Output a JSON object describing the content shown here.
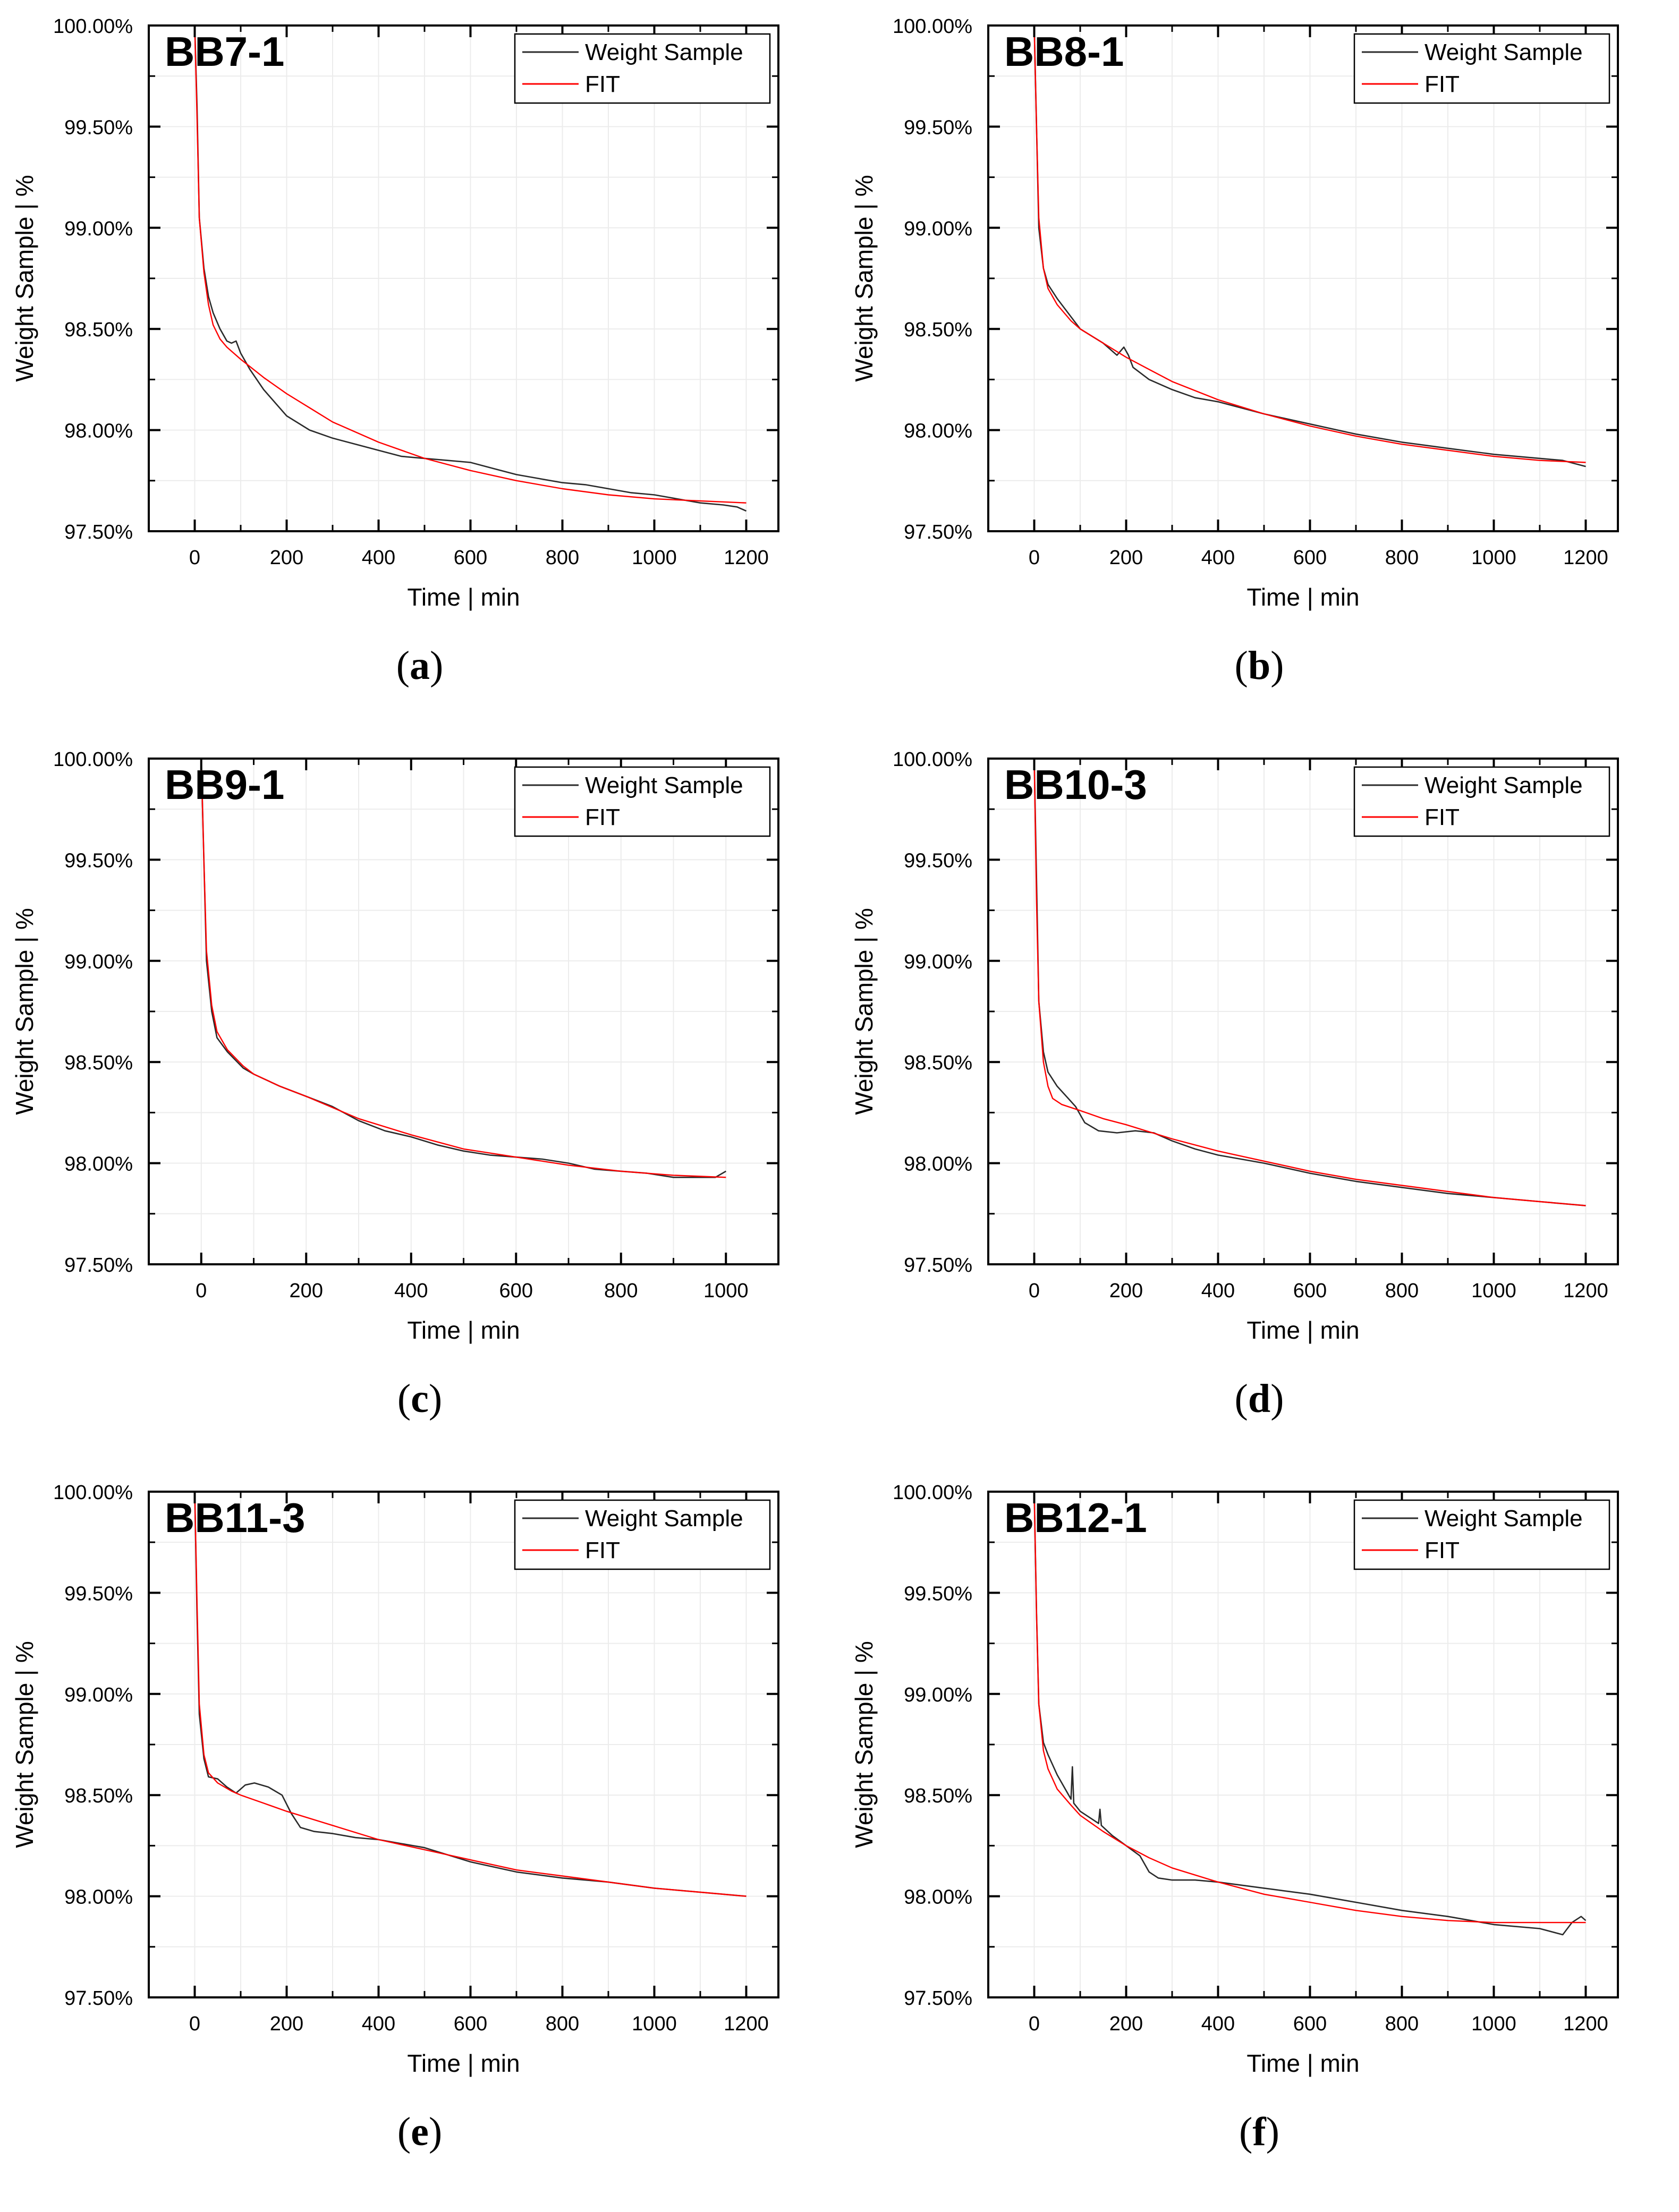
{
  "chart_data": [
    {
      "type": "line",
      "title": "BB7-1",
      "panel_label": "a",
      "xlabel": "Time | min",
      "ylabel": "Weight Sample | %",
      "xlim": [
        -100,
        1270
      ],
      "ylim": [
        97.5,
        100.0
      ],
      "xticks": [
        0,
        200,
        400,
        600,
        800,
        1000,
        1200
      ],
      "yticks": [
        97.5,
        98.0,
        98.5,
        99.0,
        99.5,
        100.0
      ],
      "ytick_labels": [
        "97.50%",
        "98.00%",
        "98.50%",
        "99.00%",
        "99.50%",
        "100.00%"
      ],
      "legend": [
        "Weight Sample",
        "FIT"
      ],
      "legend_position": "top-right",
      "series": [
        {
          "name": "Weight Sample",
          "color": "#2a2a2a",
          "x": [
            0,
            5,
            10,
            20,
            30,
            40,
            55,
            70,
            80,
            90,
            100,
            120,
            150,
            200,
            250,
            300,
            350,
            400,
            450,
            500,
            550,
            600,
            650,
            700,
            750,
            800,
            850,
            900,
            950,
            1000,
            1050,
            1100,
            1150,
            1180,
            1200
          ],
          "y": [
            100.0,
            99.6,
            99.05,
            98.8,
            98.66,
            98.58,
            98.5,
            98.44,
            98.43,
            98.44,
            98.38,
            98.3,
            98.2,
            98.07,
            98.0,
            97.96,
            97.93,
            97.9,
            97.87,
            97.86,
            97.85,
            97.84,
            97.81,
            97.78,
            97.76,
            97.74,
            97.73,
            97.71,
            97.69,
            97.68,
            97.66,
            97.64,
            97.63,
            97.62,
            97.6
          ]
        },
        {
          "name": "FIT",
          "color": "#ff0000",
          "x": [
            0,
            5,
            10,
            20,
            30,
            40,
            55,
            70,
            100,
            150,
            200,
            250,
            300,
            400,
            500,
            600,
            700,
            800,
            900,
            1000,
            1100,
            1200
          ],
          "y": [
            100.0,
            99.55,
            99.05,
            98.78,
            98.62,
            98.52,
            98.45,
            98.41,
            98.35,
            98.26,
            98.18,
            98.11,
            98.04,
            97.94,
            97.86,
            97.8,
            97.75,
            97.71,
            97.68,
            97.66,
            97.65,
            97.64
          ]
        }
      ]
    },
    {
      "type": "line",
      "title": "BB8-1",
      "panel_label": "b",
      "xlabel": "Time | min",
      "ylabel": "Weight Sample | %",
      "xlim": [
        -100,
        1270
      ],
      "ylim": [
        97.5,
        100.0
      ],
      "xticks": [
        0,
        200,
        400,
        600,
        800,
        1000,
        1200
      ],
      "yticks": [
        97.5,
        98.0,
        98.5,
        99.0,
        99.5,
        100.0
      ],
      "ytick_labels": [
        "97.50%",
        "98.00%",
        "98.50%",
        "99.00%",
        "99.50%",
        "100.00%"
      ],
      "legend": [
        "Weight Sample",
        "FIT"
      ],
      "legend_position": "top-right",
      "series": [
        {
          "name": "Weight Sample",
          "color": "#2a2a2a",
          "x": [
            0,
            5,
            10,
            20,
            30,
            50,
            80,
            100,
            150,
            180,
            195,
            205,
            215,
            250,
            300,
            350,
            400,
            500,
            600,
            700,
            800,
            900,
            1000,
            1100,
            1150,
            1200
          ],
          "y": [
            100.0,
            99.5,
            99.0,
            98.8,
            98.72,
            98.65,
            98.56,
            98.5,
            98.43,
            98.37,
            98.41,
            98.37,
            98.31,
            98.25,
            98.2,
            98.16,
            98.14,
            98.08,
            98.03,
            97.98,
            97.94,
            97.91,
            97.88,
            97.86,
            97.85,
            97.82
          ]
        },
        {
          "name": "FIT",
          "color": "#ff0000",
          "x": [
            0,
            5,
            10,
            20,
            30,
            50,
            80,
            100,
            150,
            200,
            250,
            300,
            400,
            500,
            600,
            700,
            800,
            900,
            1000,
            1100,
            1200
          ],
          "y": [
            100.0,
            99.5,
            99.05,
            98.8,
            98.7,
            98.62,
            98.54,
            98.5,
            98.43,
            98.36,
            98.3,
            98.24,
            98.15,
            98.08,
            98.02,
            97.97,
            97.93,
            97.9,
            97.87,
            97.85,
            97.84
          ]
        }
      ]
    },
    {
      "type": "line",
      "title": "BB9-1",
      "panel_label": "c",
      "xlabel": "Time | min",
      "ylabel": "Weight Sample | %",
      "xlim": [
        -100,
        1100
      ],
      "ylim": [
        97.5,
        100.0
      ],
      "xticks": [
        0,
        200,
        400,
        600,
        800,
        1000
      ],
      "yticks": [
        97.5,
        98.0,
        98.5,
        99.0,
        99.5,
        100.0
      ],
      "ytick_labels": [
        "97.50%",
        "98.00%",
        "98.50%",
        "99.00%",
        "99.50%",
        "100.00%"
      ],
      "legend": [
        "Weight Sample",
        "FIT"
      ],
      "legend_position": "top-right",
      "series": [
        {
          "name": "Weight Sample",
          "color": "#2a2a2a",
          "x": [
            0,
            5,
            10,
            20,
            30,
            50,
            80,
            100,
            150,
            200,
            250,
            300,
            350,
            400,
            450,
            500,
            550,
            600,
            650,
            700,
            750,
            800,
            850,
            900,
            950,
            980,
            1000
          ],
          "y": [
            100.0,
            99.5,
            99.0,
            98.75,
            98.62,
            98.55,
            98.47,
            98.44,
            98.38,
            98.33,
            98.28,
            98.21,
            98.16,
            98.13,
            98.09,
            98.06,
            98.04,
            98.03,
            98.02,
            98.0,
            97.97,
            97.96,
            97.95,
            97.93,
            97.93,
            97.93,
            97.96
          ]
        },
        {
          "name": "FIT",
          "color": "#ff0000",
          "x": [
            0,
            5,
            10,
            20,
            30,
            50,
            80,
            100,
            150,
            200,
            300,
            400,
            500,
            600,
            700,
            800,
            900,
            1000
          ],
          "y": [
            100.0,
            99.5,
            99.05,
            98.78,
            98.65,
            98.56,
            98.48,
            98.44,
            98.38,
            98.33,
            98.22,
            98.14,
            98.07,
            98.03,
            97.99,
            97.96,
            97.94,
            97.93
          ]
        }
      ]
    },
    {
      "type": "line",
      "title": "BB10-3",
      "panel_label": "d",
      "xlabel": "Time | min",
      "ylabel": "Weight Sample | %",
      "xlim": [
        -100,
        1270
      ],
      "ylim": [
        97.5,
        100.0
      ],
      "xticks": [
        0,
        200,
        400,
        600,
        800,
        1000,
        1200
      ],
      "yticks": [
        97.5,
        98.0,
        98.5,
        99.0,
        99.5,
        100.0
      ],
      "ytick_labels": [
        "97.50%",
        "98.00%",
        "98.50%",
        "99.00%",
        "99.50%",
        "100.00%"
      ],
      "legend": [
        "Weight Sample",
        "FIT"
      ],
      "legend_position": "top-right",
      "series": [
        {
          "name": "Weight Sample",
          "color": "#2a2a2a",
          "x": [
            0,
            5,
            10,
            20,
            30,
            50,
            70,
            90,
            110,
            140,
            180,
            220,
            260,
            300,
            350,
            400,
            500,
            600,
            700,
            800,
            900,
            1000,
            1100,
            1200
          ],
          "y": [
            100.0,
            99.4,
            98.8,
            98.55,
            98.45,
            98.38,
            98.33,
            98.28,
            98.2,
            98.16,
            98.15,
            98.16,
            98.15,
            98.11,
            98.07,
            98.04,
            98.0,
            97.95,
            97.91,
            97.88,
            97.85,
            97.83,
            97.81,
            97.79
          ]
        },
        {
          "name": "FIT",
          "color": "#ff0000",
          "x": [
            0,
            5,
            10,
            20,
            30,
            40,
            60,
            100,
            150,
            200,
            300,
            400,
            500,
            600,
            700,
            800,
            900,
            1000,
            1100,
            1200
          ],
          "y": [
            100.0,
            99.3,
            98.8,
            98.5,
            98.38,
            98.32,
            98.29,
            98.26,
            98.22,
            98.19,
            98.12,
            98.06,
            98.01,
            97.96,
            97.92,
            97.89,
            97.86,
            97.83,
            97.81,
            97.79
          ]
        }
      ]
    },
    {
      "type": "line",
      "title": "BB11-3",
      "panel_label": "e",
      "xlabel": "Time | min",
      "ylabel": "Weight Sample | %",
      "xlim": [
        -100,
        1270
      ],
      "ylim": [
        97.5,
        100.0
      ],
      "xticks": [
        0,
        200,
        400,
        600,
        800,
        1000,
        1200
      ],
      "yticks": [
        97.5,
        98.0,
        98.5,
        99.0,
        99.5,
        100.0
      ],
      "ytick_labels": [
        "97.50%",
        "98.00%",
        "98.50%",
        "99.00%",
        "99.50%",
        "100.00%"
      ],
      "legend": [
        "Weight Sample",
        "FIT"
      ],
      "legend_position": "top-right",
      "series": [
        {
          "name": "Weight Sample",
          "color": "#2a2a2a",
          "x": [
            0,
            5,
            10,
            20,
            30,
            50,
            70,
            90,
            110,
            130,
            160,
            190,
            210,
            230,
            260,
            300,
            350,
            400,
            450,
            500,
            600,
            700,
            800,
            900,
            1000,
            1100,
            1200
          ],
          "y": [
            100.0,
            99.4,
            98.9,
            98.68,
            98.59,
            98.58,
            98.54,
            98.51,
            98.55,
            98.56,
            98.54,
            98.5,
            98.41,
            98.34,
            98.32,
            98.31,
            98.29,
            98.28,
            98.26,
            98.24,
            98.17,
            98.12,
            98.09,
            98.07,
            98.04,
            98.02,
            98.0
          ]
        },
        {
          "name": "FIT",
          "color": "#ff0000",
          "x": [
            0,
            5,
            10,
            20,
            30,
            50,
            80,
            100,
            150,
            200,
            300,
            400,
            500,
            600,
            700,
            800,
            900,
            1000,
            1100,
            1200
          ],
          "y": [
            100.0,
            99.45,
            98.95,
            98.7,
            98.61,
            98.56,
            98.52,
            98.5,
            98.46,
            98.42,
            98.35,
            98.28,
            98.23,
            98.18,
            98.13,
            98.1,
            98.07,
            98.04,
            98.02,
            98.0
          ]
        }
      ]
    },
    {
      "type": "line",
      "title": "BB12-1",
      "panel_label": "f",
      "xlabel": "Time | min",
      "ylabel": "Weight Sample | %",
      "xlim": [
        -100,
        1270
      ],
      "ylim": [
        97.5,
        100.0
      ],
      "xticks": [
        0,
        200,
        400,
        600,
        800,
        1000,
        1200
      ],
      "yticks": [
        97.5,
        98.0,
        98.5,
        99.0,
        99.5,
        100.0
      ],
      "ytick_labels": [
        "97.50%",
        "98.00%",
        "98.50%",
        "99.00%",
        "99.50%",
        "100.00%"
      ],
      "legend": [
        "Weight Sample",
        "FIT"
      ],
      "legend_position": "top-right",
      "series": [
        {
          "name": "Weight Sample",
          "color": "#2a2a2a",
          "x": [
            0,
            5,
            10,
            20,
            30,
            50,
            80,
            83,
            86,
            100,
            140,
            143,
            146,
            170,
            200,
            230,
            250,
            270,
            300,
            350,
            400,
            500,
            600,
            700,
            800,
            900,
            1000,
            1100,
            1150,
            1170,
            1190,
            1200
          ],
          "y": [
            100.0,
            99.4,
            98.95,
            98.76,
            98.7,
            98.6,
            98.48,
            98.64,
            98.46,
            98.42,
            98.36,
            98.43,
            98.35,
            98.3,
            98.25,
            98.2,
            98.12,
            98.09,
            98.08,
            98.08,
            98.07,
            98.04,
            98.01,
            97.97,
            97.93,
            97.9,
            97.86,
            97.84,
            97.81,
            97.87,
            97.9,
            97.88
          ]
        },
        {
          "name": "FIT",
          "color": "#ff0000",
          "x": [
            0,
            5,
            10,
            20,
            30,
            50,
            80,
            100,
            150,
            200,
            250,
            300,
            400,
            500,
            600,
            700,
            800,
            900,
            1000,
            1100,
            1200
          ],
          "y": [
            100.0,
            99.4,
            98.95,
            98.72,
            98.63,
            98.53,
            98.45,
            98.4,
            98.32,
            98.25,
            98.19,
            98.14,
            98.07,
            98.01,
            97.97,
            97.93,
            97.9,
            97.88,
            97.87,
            97.87,
            97.87
          ]
        }
      ]
    }
  ]
}
